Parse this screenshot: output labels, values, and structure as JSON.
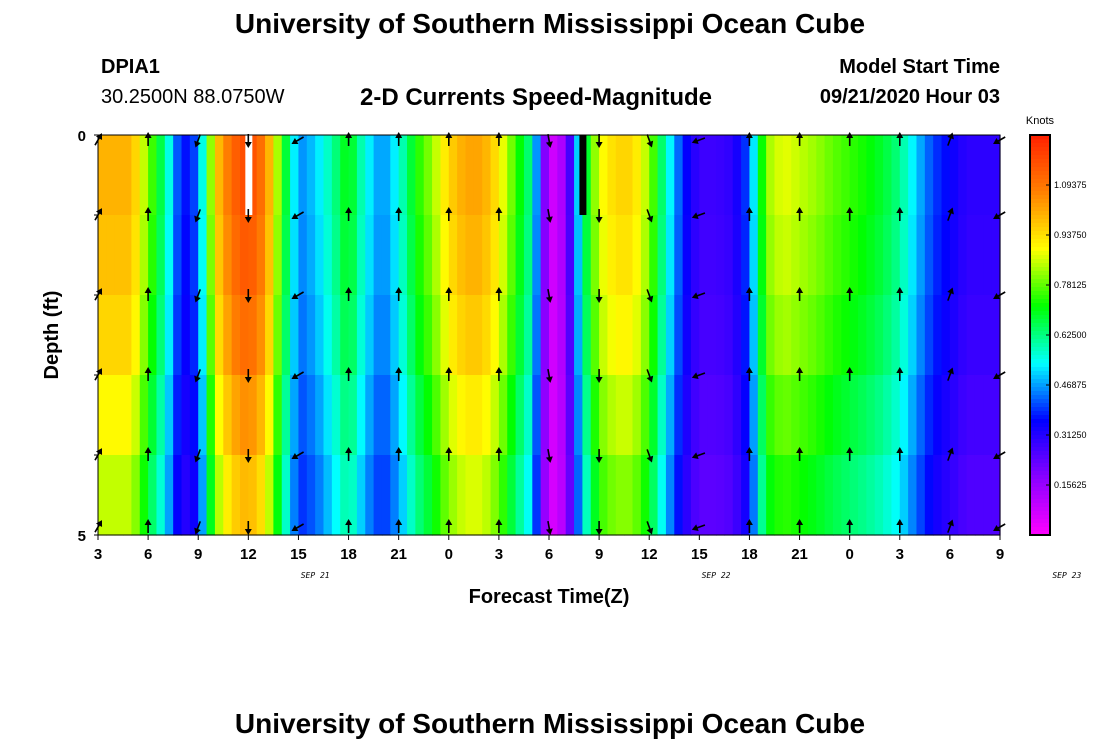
{
  "header": {
    "title": "University of Southern Mississippi Ocean Cube",
    "station_id": "DPIA1",
    "coordinates": "30.2500N 88.0750W",
    "subtitle": "2-D Currents Speed-Magnitude",
    "model_start_label": "Model Start Time",
    "model_start_value": "09/21/2020 Hour 03"
  },
  "footer": {
    "title": "University of Southern Mississippi Ocean Cube"
  },
  "colors": {
    "scale": [
      "#ff00ff",
      "#8a00ff",
      "#0000ff",
      "#00ffff",
      "#00ff00",
      "#ffff00",
      "#ff8000",
      "#ff2000"
    ],
    "arrow": "#000000",
    "missing_white": "#ffffff",
    "missing_black": "#000000"
  },
  "chart_data": {
    "type": "heatmap",
    "xlabel": "Forecast Time(Z)",
    "ylabel": "Depth (ft)",
    "x_tick_labels": [
      "3",
      "6",
      "9",
      "12",
      "15",
      "18",
      "21",
      "0",
      "3",
      "6",
      "9",
      "12",
      "15",
      "18",
      "21",
      "0",
      "3",
      "6",
      "9"
    ],
    "date_labels": [
      {
        "text": "SEP 21",
        "at_hour": 13
      },
      {
        "text": "SEP 22",
        "at_hour": 37
      },
      {
        "text": "SEP 23",
        "at_hour": 58
      }
    ],
    "y_tick_labels": [
      "0",
      "5"
    ],
    "depth_range_ft": [
      0,
      5
    ],
    "hour_range": [
      0,
      54
    ],
    "depth_levels": 5,
    "colorbar": {
      "title": "Knots",
      "min": 0,
      "max": 1.25,
      "ticks": [
        "0.15625",
        "0.31250",
        "0.46875",
        "0.62500",
        "0.78125",
        "0.93750",
        "1.09375"
      ]
    },
    "speed_profile": [
      {
        "hour": 0,
        "v": 1.0
      },
      {
        "hour": 2,
        "v": 1.0
      },
      {
        "hour": 3,
        "v": 0.8
      },
      {
        "hour": 4,
        "v": 0.62
      },
      {
        "hour": 5,
        "v": 0.35
      },
      {
        "hour": 6,
        "v": 0.42
      },
      {
        "hour": 7,
        "v": 0.95
      },
      {
        "hour": 8,
        "v": 1.12
      },
      {
        "hour": 9,
        "v": 1.18
      },
      {
        "hour": 10,
        "v": 1.08
      },
      {
        "hour": 11,
        "v": 0.75
      },
      {
        "hour": 12,
        "v": 0.45
      },
      {
        "hour": 13,
        "v": 0.5
      },
      {
        "hour": 14,
        "v": 0.6
      },
      {
        "hour": 15,
        "v": 0.72
      },
      {
        "hour": 16,
        "v": 0.55
      },
      {
        "hour": 17,
        "v": 0.45
      },
      {
        "hour": 18,
        "v": 0.55
      },
      {
        "hour": 19,
        "v": 0.72
      },
      {
        "hour": 20,
        "v": 0.82
      },
      {
        "hour": 21,
        "v": 0.95
      },
      {
        "hour": 22,
        "v": 1.02
      },
      {
        "hour": 23,
        "v": 1.02
      },
      {
        "hour": 24,
        "v": 0.92
      },
      {
        "hour": 25,
        "v": 0.75
      },
      {
        "hour": 26,
        "v": 0.6
      },
      {
        "hour": 27,
        "v": 0.05
      },
      {
        "hour": 28,
        "v": 0.15
      },
      {
        "hour": 29,
        "v": 0.62
      },
      {
        "hour": 30,
        "v": 0.88
      },
      {
        "hour": 31,
        "v": 0.95
      },
      {
        "hour": 32,
        "v": 0.95
      },
      {
        "hour": 33,
        "v": 0.82
      },
      {
        "hour": 34,
        "v": 0.58
      },
      {
        "hour": 35,
        "v": 0.38
      },
      {
        "hour": 36,
        "v": 0.28
      },
      {
        "hour": 37,
        "v": 0.28
      },
      {
        "hour": 38,
        "v": 0.3
      },
      {
        "hour": 39,
        "v": 0.42
      },
      {
        "hour": 40,
        "v": 0.82
      },
      {
        "hour": 41,
        "v": 0.88
      },
      {
        "hour": 42,
        "v": 0.85
      },
      {
        "hour": 43,
        "v": 0.82
      },
      {
        "hour": 44,
        "v": 0.78
      },
      {
        "hour": 45,
        "v": 0.75
      },
      {
        "hour": 46,
        "v": 0.72
      },
      {
        "hour": 47,
        "v": 0.68
      },
      {
        "hour": 48,
        "v": 0.62
      },
      {
        "hour": 49,
        "v": 0.5
      },
      {
        "hour": 50,
        "v": 0.4
      },
      {
        "hour": 51,
        "v": 0.35
      },
      {
        "hour": 52,
        "v": 0.3
      },
      {
        "hour": 53,
        "v": 0.3
      },
      {
        "hour": 54,
        "v": 0.3
      }
    ],
    "depth_factor": [
      1.0,
      0.98,
      0.95,
      0.9,
      0.85
    ],
    "missing_cells": [
      {
        "hour": 9,
        "depth_level": 0,
        "kind": "white"
      },
      {
        "hour": 29,
        "depth_level": 0,
        "kind": "black"
      }
    ],
    "arrow_direction_deg": [
      {
        "hour": 0,
        "deg": 30
      },
      {
        "hour": 3,
        "deg": 0
      },
      {
        "hour": 6,
        "deg": 200
      },
      {
        "hour": 9,
        "deg": 180
      },
      {
        "hour": 12,
        "deg": 240
      },
      {
        "hour": 15,
        "deg": 0
      },
      {
        "hour": 18,
        "deg": 0
      },
      {
        "hour": 21,
        "deg": 0
      },
      {
        "hour": 24,
        "deg": 0
      },
      {
        "hour": 27,
        "deg": 170
      },
      {
        "hour": 30,
        "deg": 180
      },
      {
        "hour": 33,
        "deg": 160
      },
      {
        "hour": 36,
        "deg": 250
      },
      {
        "hour": 39,
        "deg": 0
      },
      {
        "hour": 42,
        "deg": 0
      },
      {
        "hour": 45,
        "deg": 0
      },
      {
        "hour": 48,
        "deg": 0
      },
      {
        "hour": 51,
        "deg": 20
      },
      {
        "hour": 54,
        "deg": 240
      }
    ]
  }
}
